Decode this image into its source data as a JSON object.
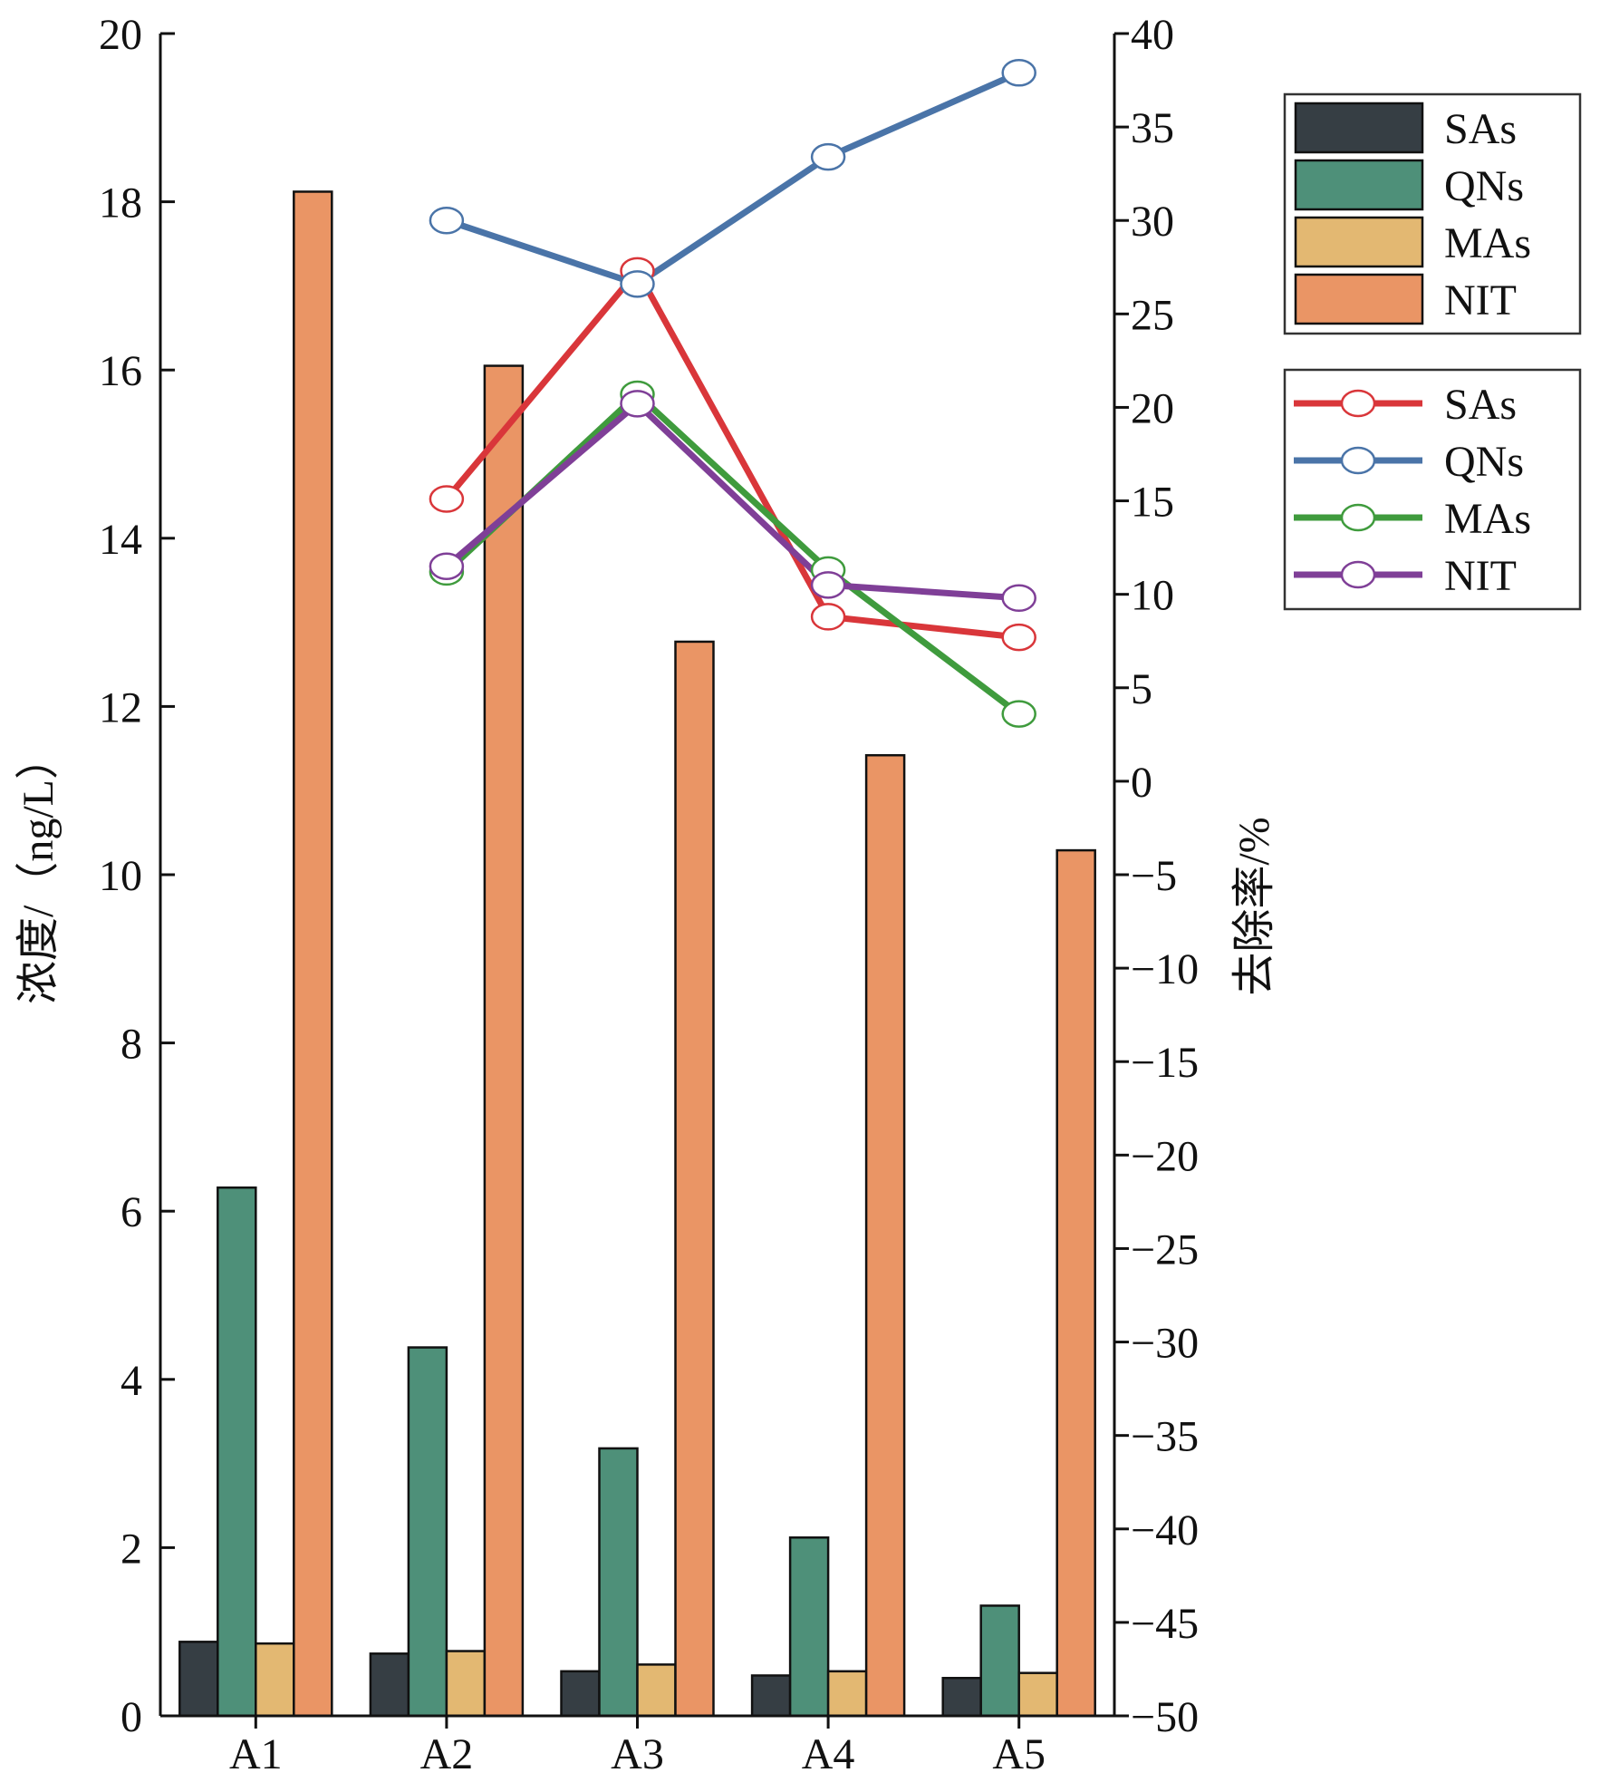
{
  "chart_data": {
    "type": "bar",
    "categories": [
      "A1",
      "A2",
      "A3",
      "A4",
      "A5"
    ],
    "left_axis": {
      "label": "浓度/（ng/L）",
      "ylim": [
        0,
        20
      ],
      "ticks": [
        0,
        2,
        4,
        6,
        8,
        10,
        12,
        14,
        16,
        18,
        20
      ]
    },
    "right_axis": {
      "label": "去除率/%",
      "ylim": [
        -50,
        40
      ],
      "ticks": [
        -50,
        -45,
        -40,
        -35,
        -30,
        -25,
        -20,
        -15,
        -10,
        -5,
        0,
        5,
        10,
        15,
        20,
        25,
        30,
        35,
        40
      ],
      "tick_labels": [
        "−50",
        "−45",
        "−40",
        "−35",
        "−30",
        "−25",
        "−20",
        "−15",
        "−10",
        "−5",
        "0",
        "5",
        "10",
        "15",
        "20",
        "25",
        "30",
        "35",
        "40"
      ]
    },
    "bar_series": [
      {
        "name": "SAs",
        "color": "#363e44",
        "values": [
          0.88,
          0.74,
          0.53,
          0.48,
          0.45
        ]
      },
      {
        "name": "QNs",
        "color": "#4e9079",
        "values": [
          6.28,
          4.38,
          3.18,
          2.12,
          1.31
        ]
      },
      {
        "name": "MAs",
        "color": "#e3b872",
        "values": [
          0.86,
          0.77,
          0.61,
          0.53,
          0.51
        ]
      },
      {
        "name": "NIT",
        "color": "#ea9565",
        "values": [
          18.12,
          16.05,
          12.77,
          11.42,
          10.29
        ]
      }
    ],
    "line_series": [
      {
        "name": "SAs",
        "color": "#d9363a",
        "x": [
          "A2",
          "A3",
          "A4",
          "A5"
        ],
        "values": [
          15.1,
          27.3,
          8.8,
          7.7
        ]
      },
      {
        "name": "QNs",
        "color": "#4a74a8",
        "x": [
          "A2",
          "A3",
          "A4",
          "A5"
        ],
        "values": [
          30.0,
          26.6,
          33.4,
          37.9
        ]
      },
      {
        "name": "MAs",
        "color": "#3f9b3d",
        "x": [
          "A2",
          "A3",
          "A4",
          "A5"
        ],
        "values": [
          11.2,
          20.7,
          11.3,
          3.6
        ]
      },
      {
        "name": "NIT",
        "color": "#7f3f97",
        "x": [
          "A2",
          "A3",
          "A4",
          "A5"
        ],
        "values": [
          11.5,
          20.2,
          10.5,
          9.8
        ]
      }
    ],
    "grid": false,
    "legend_placement": "right, two boxes (bars upper, lines lower)"
  }
}
